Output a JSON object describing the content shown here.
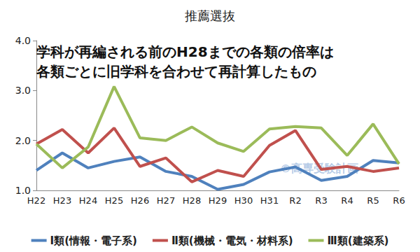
{
  "chart_data": {
    "type": "line",
    "title": "推薦選抜",
    "annotations": [
      "学科が再編される前のH28までの各類の倍率は\n各類ごとに旧学科を合わせて再計算したもの",
      "©高専受験計画"
    ],
    "categories": [
      "H22",
      "H23",
      "H24",
      "H25",
      "H26",
      "H27",
      "H28",
      "H29",
      "H30",
      "H31",
      "R2",
      "R3",
      "R4",
      "R5",
      "R6"
    ],
    "series": [
      {
        "name": "Ⅰ類(情報・電子系)",
        "color": "#4f81bd",
        "values": [
          1.4,
          1.75,
          1.45,
          1.58,
          1.67,
          1.38,
          1.28,
          1.02,
          1.12,
          1.37,
          1.47,
          1.2,
          1.28,
          1.6,
          1.55
        ]
      },
      {
        "name": "Ⅱ類(機械・電気・材料系)",
        "color": "#c0504d",
        "values": [
          1.93,
          2.22,
          1.75,
          2.25,
          1.48,
          1.65,
          1.17,
          1.4,
          1.28,
          1.9,
          2.2,
          1.42,
          1.48,
          1.38,
          1.45
        ]
      },
      {
        "name": "Ⅲ類(建築系)",
        "color": "#9bbb59",
        "values": [
          1.93,
          1.45,
          1.87,
          3.08,
          2.05,
          2.0,
          2.27,
          1.95,
          1.78,
          2.23,
          2.28,
          2.25,
          1.7,
          2.33,
          1.53
        ]
      }
    ],
    "ylim": [
      1,
      4
    ],
    "yticks": [
      {
        "value": 1,
        "label": "1.0"
      },
      {
        "value": 2,
        "label": "2.0"
      },
      {
        "value": 3,
        "label": "3.0"
      },
      {
        "value": 4,
        "label": "4.0"
      }
    ],
    "grid": false,
    "legend": "bottom"
  }
}
